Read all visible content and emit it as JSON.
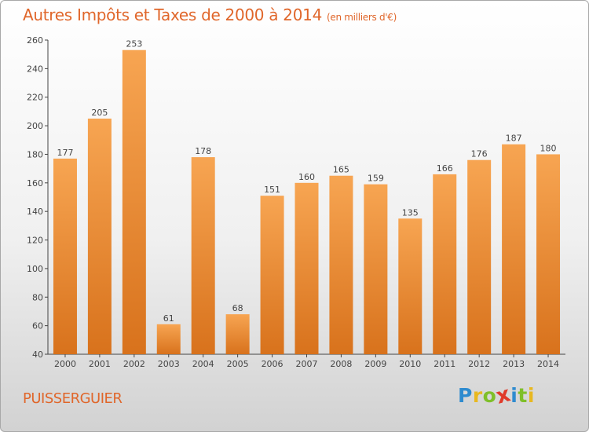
{
  "chart_data": {
    "type": "bar",
    "title": "Autres Impôts et Taxes de 2000 à 2014",
    "subtitle": "(en milliers d'€)",
    "categories": [
      "2000",
      "2001",
      "2002",
      "2003",
      "2004",
      "2005",
      "2006",
      "2007",
      "2008",
      "2009",
      "2010",
      "2011",
      "2012",
      "2013",
      "2014"
    ],
    "values": [
      177,
      205,
      253,
      61,
      178,
      68,
      151,
      160,
      165,
      159,
      135,
      166,
      176,
      187,
      180
    ],
    "ylim": [
      40,
      260
    ],
    "yticks": [
      40,
      60,
      80,
      100,
      120,
      140,
      160,
      180,
      200,
      220,
      240,
      260
    ],
    "grid": false,
    "bar_color": "#f08c2e",
    "label": "PUISSERGUIER"
  },
  "logo": {
    "letters": [
      "P",
      "r",
      "o",
      "x",
      "i",
      "t",
      "i"
    ],
    "colors": [
      "#2e8bcf",
      "#e8b820",
      "#7fbf2a",
      "#e03a2a",
      "#2e8bcf",
      "#7fbf2a",
      "#e8b820"
    ]
  }
}
